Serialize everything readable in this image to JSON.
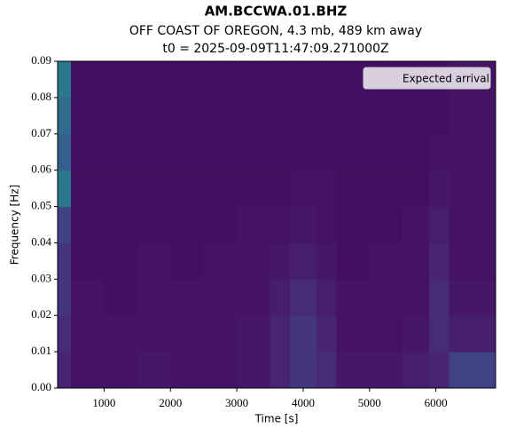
{
  "chart_data": {
    "type": "heatmap",
    "title": "AM.BCCWA.01.BHZ",
    "subtitle": "OFF COAST OF OREGON, 4.3 mb, 489 km away",
    "annotation": "t0 = 2025-09-09T11:47:09.271000Z",
    "xlabel": "Time [s]",
    "ylabel": "Frequency [Hz]",
    "xlim": [
      300,
      6900
    ],
    "ylim": [
      0,
      0.09
    ],
    "xticks": [
      1000,
      2000,
      3000,
      4000,
      5000,
      6000
    ],
    "yticks": [
      {
        "value": 0,
        "label": "0.00"
      },
      {
        "value": 0.01,
        "label": "0.01"
      },
      {
        "value": 0.02,
        "label": "0.02"
      },
      {
        "value": 0.03,
        "label": "0.03"
      },
      {
        "value": 0.04,
        "label": "0.04"
      },
      {
        "value": 0.05,
        "label": "0.05"
      },
      {
        "value": 0.06,
        "label": "0.06"
      },
      {
        "value": 0.07,
        "label": "0.07"
      },
      {
        "value": 0.08,
        "label": "0.08"
      },
      {
        "value": 0.09,
        "label": "0.09"
      }
    ],
    "colormap": "viridis",
    "zlim": [
      0,
      1
    ],
    "xbins": [
      300,
      500,
      1000,
      1500,
      2000,
      2500,
      3000,
      3500,
      3800,
      4200,
      4500,
      5000,
      5500,
      5900,
      6200,
      6900
    ],
    "ybins": [
      0,
      0.01,
      0.02,
      0.03,
      0.04,
      0.05,
      0.06,
      0.07,
      0.08,
      0.09
    ],
    "z": [
      [
        0.1,
        0.05,
        0.05,
        0.06,
        0.05,
        0.05,
        0.06,
        0.1,
        0.15,
        0.12,
        0.06,
        0.06,
        0.08,
        0.1,
        0.2
      ],
      [
        0.12,
        0.05,
        0.05,
        0.05,
        0.05,
        0.05,
        0.06,
        0.1,
        0.15,
        0.1,
        0.05,
        0.05,
        0.06,
        0.12,
        0.08
      ],
      [
        0.15,
        0.05,
        0.04,
        0.05,
        0.05,
        0.05,
        0.05,
        0.08,
        0.12,
        0.08,
        0.05,
        0.05,
        0.05,
        0.12,
        0.06
      ],
      [
        0.15,
        0.04,
        0.04,
        0.05,
        0.04,
        0.05,
        0.05,
        0.06,
        0.08,
        0.06,
        0.04,
        0.05,
        0.05,
        0.1,
        0.05
      ],
      [
        0.2,
        0.04,
        0.04,
        0.04,
        0.04,
        0.04,
        0.05,
        0.05,
        0.06,
        0.05,
        0.04,
        0.04,
        0.05,
        0.08,
        0.05
      ],
      [
        0.4,
        0.04,
        0.04,
        0.04,
        0.04,
        0.04,
        0.04,
        0.04,
        0.05,
        0.05,
        0.04,
        0.04,
        0.04,
        0.06,
        0.05
      ],
      [
        0.3,
        0.04,
        0.04,
        0.04,
        0.04,
        0.04,
        0.04,
        0.04,
        0.04,
        0.04,
        0.04,
        0.04,
        0.04,
        0.05,
        0.05
      ],
      [
        0.35,
        0.04,
        0.04,
        0.04,
        0.04,
        0.04,
        0.04,
        0.04,
        0.04,
        0.04,
        0.04,
        0.04,
        0.04,
        0.04,
        0.05
      ],
      [
        0.4,
        0.04,
        0.04,
        0.04,
        0.04,
        0.04,
        0.04,
        0.04,
        0.04,
        0.04,
        0.04,
        0.04,
        0.04,
        0.04,
        0.05
      ]
    ],
    "legend": {
      "label": "Expected arrival",
      "loc": "upper right",
      "color": "#ffffff",
      "linestyle": "dashed"
    }
  }
}
